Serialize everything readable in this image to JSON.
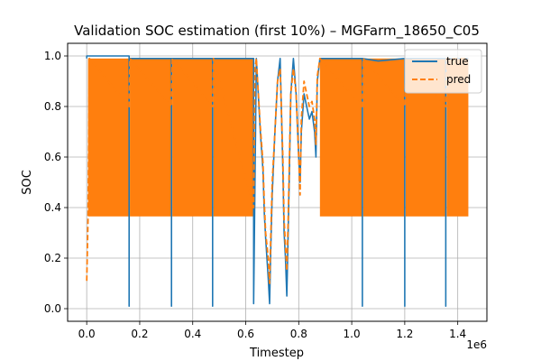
{
  "chart_data": {
    "type": "line",
    "title": "Validation SOC estimation (first 10%) – MGFarm_18650_C05",
    "xlabel": "Timestep",
    "ylabel": "SOC",
    "x_offset_label": "1e6",
    "xlim": [
      -0.072,
      1.51
    ],
    "ylim": [
      -0.05,
      1.05
    ],
    "xticks": [
      0.0,
      0.2,
      0.4,
      0.6,
      0.8,
      1.0,
      1.2,
      1.4
    ],
    "xtick_labels": [
      "0.0",
      "0.2",
      "0.4",
      "0.6",
      "0.8",
      "1.0",
      "1.2",
      "1.4"
    ],
    "yticks": [
      0.0,
      0.2,
      0.4,
      0.6,
      0.8,
      1.0
    ],
    "ytick_labels": [
      "0.0",
      "0.2",
      "0.4",
      "0.6",
      "0.8",
      "1.0"
    ],
    "grid": true,
    "legend_position": "top-right",
    "colors": {
      "true": "#1f77b4",
      "pred": "#ff7f0e"
    },
    "series": [
      {
        "name": "true",
        "style": "solid",
        "color": "#1f77b4",
        "x": [
          0.0,
          0.0,
          0.16,
          0.16,
          0.16,
          0.32,
          0.32,
          0.32,
          0.475,
          0.475,
          0.475,
          0.63,
          0.63,
          0.64,
          0.645,
          0.655,
          0.665,
          0.67,
          0.675,
          0.685,
          0.69,
          0.695,
          0.7,
          0.71,
          0.72,
          0.73,
          0.74,
          0.745,
          0.75,
          0.755,
          0.76,
          0.765,
          0.77,
          0.78,
          0.79,
          0.8,
          0.805,
          0.81,
          0.82,
          0.83,
          0.84,
          0.85,
          0.86,
          0.865,
          0.87,
          0.88,
          0.88,
          0.9,
          1.0,
          1.04,
          1.04,
          1.04,
          1.1,
          1.2,
          1.2,
          1.2,
          1.28,
          1.355,
          1.355,
          1.355,
          1.4,
          1.44
        ],
        "y": [
          0.99,
          1.0,
          1.0,
          0.01,
          0.99,
          0.99,
          0.01,
          0.99,
          0.99,
          0.01,
          0.99,
          0.99,
          0.02,
          0.99,
          0.9,
          0.7,
          0.55,
          0.38,
          0.28,
          0.12,
          0.02,
          0.25,
          0.45,
          0.7,
          0.9,
          0.99,
          0.55,
          0.3,
          0.2,
          0.05,
          0.3,
          0.55,
          0.85,
          0.99,
          0.85,
          0.6,
          0.5,
          0.7,
          0.85,
          0.8,
          0.75,
          0.78,
          0.7,
          0.6,
          0.9,
          0.99,
          0.99,
          0.99,
          0.99,
          0.99,
          0.01,
          0.99,
          0.98,
          0.99,
          0.01,
          0.99,
          0.99,
          0.99,
          0.01,
          0.99,
          0.99,
          0.99
        ]
      },
      {
        "name": "pred",
        "style": "dashed",
        "color": "#ff7f0e",
        "band_low": 0.365,
        "band_high": 0.99,
        "x": [
          0.0,
          0.005,
          0.01,
          0.16,
          0.163,
          0.32,
          0.323,
          0.475,
          0.478,
          0.63,
          0.635,
          0.64,
          0.645,
          0.655,
          0.665,
          0.67,
          0.675,
          0.685,
          0.69,
          0.695,
          0.7,
          0.71,
          0.72,
          0.73,
          0.74,
          0.745,
          0.75,
          0.755,
          0.76,
          0.765,
          0.77,
          0.78,
          0.79,
          0.8,
          0.805,
          0.81,
          0.82,
          0.83,
          0.84,
          0.85,
          0.86,
          0.865,
          0.87,
          0.88,
          1.04,
          1.043,
          1.2,
          1.203,
          1.355,
          1.358,
          1.44
        ],
        "y": [
          0.11,
          0.35,
          0.99,
          0.8,
          0.99,
          0.8,
          0.99,
          0.8,
          0.99,
          0.4,
          0.95,
          0.99,
          0.9,
          0.72,
          0.58,
          0.42,
          0.3,
          0.2,
          0.1,
          0.3,
          0.5,
          0.7,
          0.9,
          0.95,
          0.6,
          0.35,
          0.25,
          0.15,
          0.35,
          0.6,
          0.85,
          0.95,
          0.85,
          0.6,
          0.45,
          0.75,
          0.9,
          0.85,
          0.8,
          0.82,
          0.75,
          0.65,
          0.92,
          0.99,
          0.8,
          0.99,
          0.8,
          0.99,
          0.8,
          0.99,
          0.99
        ]
      }
    ]
  }
}
